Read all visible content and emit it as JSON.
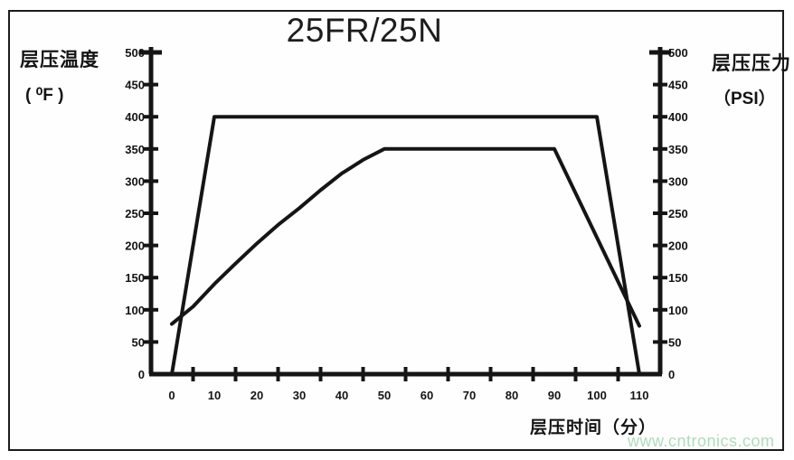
{
  "title": "25FR/25N",
  "left_axis": {
    "title": "层压温度",
    "unit": "( ⁰F )"
  },
  "right_axis": {
    "title": "层压压力",
    "unit": "（PSI）"
  },
  "x_axis": {
    "title": "层压时间（分）"
  },
  "watermark": {
    "text": "www.cntronics.com",
    "color": "#aedcba"
  },
  "colors": {
    "line": "#151515",
    "text": "#141414",
    "frame": "#1c1c1c"
  },
  "chart_data": {
    "type": "line",
    "title": "25FR/25N",
    "xlabel": "层压时间（分）",
    "ylabel_left": "层压温度（⁰F）",
    "ylabel_right": "层压压力（PSI）",
    "x_ticks": [
      0,
      10,
      20,
      30,
      40,
      50,
      60,
      70,
      80,
      90,
      100,
      110
    ],
    "y_ticks_left": [
      0,
      50,
      100,
      150,
      200,
      250,
      300,
      350,
      400,
      450,
      500
    ],
    "y_ticks_right": [
      0,
      50,
      100,
      150,
      200,
      250,
      300,
      350,
      400,
      450,
      500
    ],
    "xlim": [
      -5,
      115
    ],
    "ylim": [
      0,
      500
    ],
    "grid": false,
    "legend": "none",
    "series": [
      {
        "name": "层压压力 (PSI)",
        "axis": "right",
        "points": [
          [
            0,
            0
          ],
          [
            10,
            400
          ],
          [
            100,
            400
          ],
          [
            110,
            0
          ]
        ]
      },
      {
        "name": "层压温度 (⁰F)",
        "axis": "left",
        "points": [
          [
            0,
            78
          ],
          [
            5,
            105
          ],
          [
            10,
            140
          ],
          [
            15,
            172
          ],
          [
            20,
            203
          ],
          [
            25,
            232
          ],
          [
            30,
            258
          ],
          [
            35,
            286
          ],
          [
            40,
            312
          ],
          [
            45,
            333
          ],
          [
            50,
            350
          ],
          [
            90,
            350
          ],
          [
            110,
            75
          ]
        ]
      }
    ]
  }
}
